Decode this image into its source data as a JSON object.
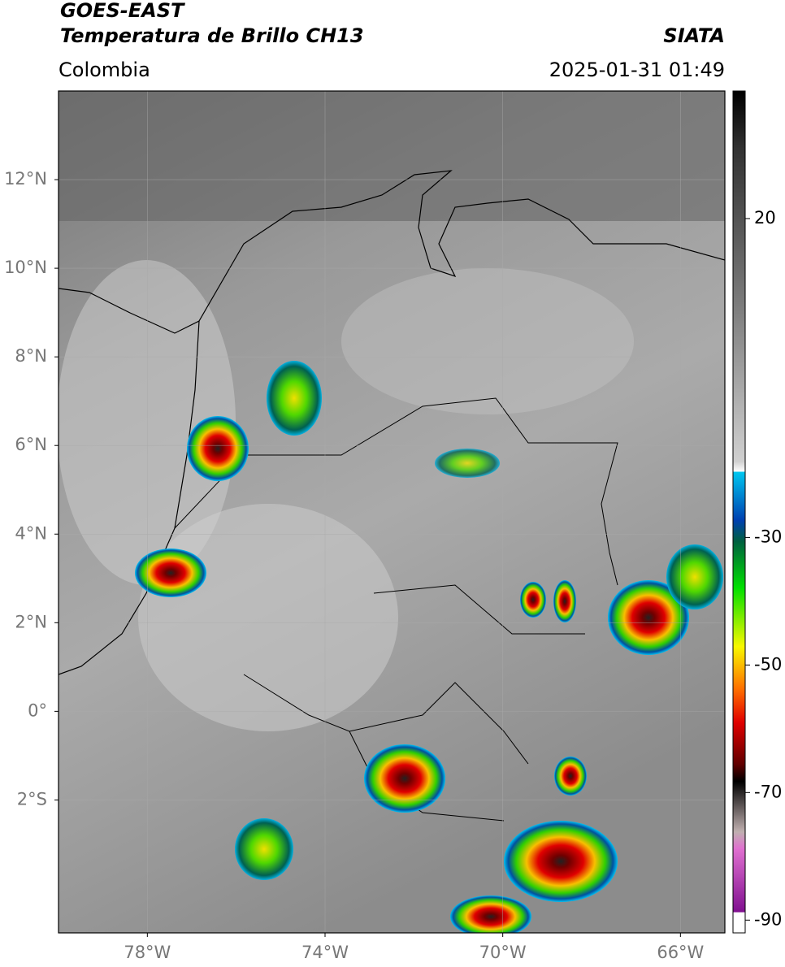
{
  "header": {
    "title": "GOES-EAST",
    "subtitle": "Temperatura de Brillo CH13",
    "source": "SIATA",
    "region": "Colombia",
    "datetime": "2025-01-31 01:49"
  },
  "map": {
    "lonlim": [
      -80,
      -65
    ],
    "latlim": [
      -5,
      14
    ],
    "lonticks": [
      {
        "value": -78,
        "label": "78°W"
      },
      {
        "value": -74,
        "label": "74°W"
      },
      {
        "value": -70,
        "label": "70°W"
      },
      {
        "value": -66,
        "label": "66°W"
      }
    ],
    "latticks": [
      {
        "value": 12,
        "label": "12°N"
      },
      {
        "value": 10,
        "label": "10°N"
      },
      {
        "value": 8,
        "label": "8°N"
      },
      {
        "value": 6,
        "label": "6°N"
      },
      {
        "value": 4,
        "label": "4°N"
      },
      {
        "value": 2,
        "label": "2°N"
      },
      {
        "value": 0,
        "label": "0°"
      },
      {
        "value": -2,
        "label": "2°S"
      }
    ],
    "grid": true
  },
  "colorbar": {
    "lim": [
      -92,
      40
    ],
    "ticks": [
      20,
      -30,
      -50,
      -70,
      -90
    ]
  }
}
